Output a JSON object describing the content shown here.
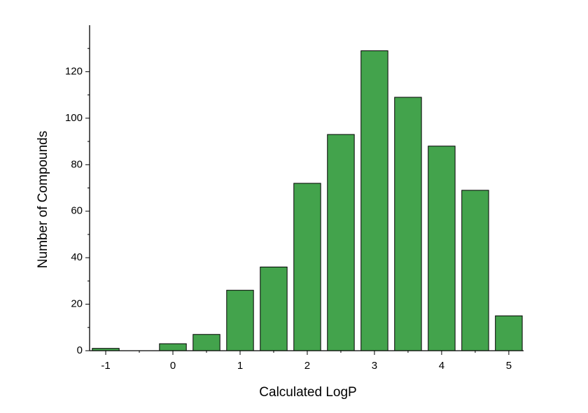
{
  "chart_data": {
    "type": "bar",
    "xlabel": "Calculated LogP",
    "ylabel": "Number of Compounds",
    "x": [
      -1,
      -0.5,
      0,
      0.5,
      1,
      1.5,
      2,
      2.5,
      3,
      3.5,
      4,
      4.5,
      5
    ],
    "values": [
      1,
      0,
      3,
      7,
      26,
      36,
      72,
      93,
      129,
      109,
      88,
      69,
      15
    ],
    "bar_width": 0.4,
    "color": "#43a34c",
    "xlim": [
      -1.24,
      5.22
    ],
    "xticks": [
      -1,
      0,
      1,
      2,
      3,
      4,
      5
    ],
    "xminorticks": [
      -0.5,
      0.5,
      1.5,
      2.5,
      3.5,
      4.5
    ],
    "ylim": [
      0,
      140
    ],
    "yticks": [
      0,
      20,
      40,
      60,
      80,
      100,
      120
    ],
    "yminorticks": [
      10,
      30,
      50,
      70,
      90,
      110,
      130
    ],
    "grid": false
  }
}
